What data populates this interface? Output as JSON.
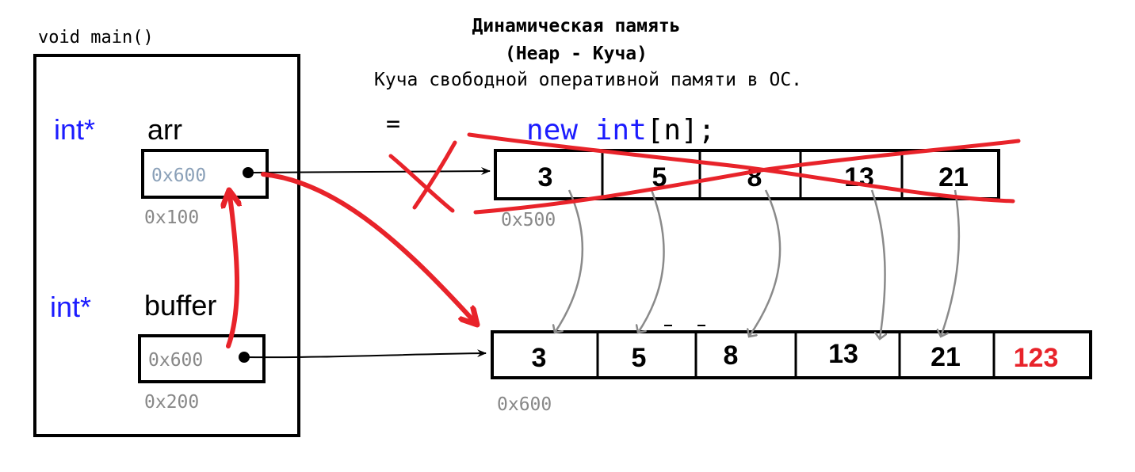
{
  "heading": {
    "title": "Динамическая память",
    "subtitle": "(Heap - Куча)",
    "description": "Куча свободной оперативной памяти в ОС."
  },
  "frame": {
    "label": "void main()"
  },
  "vars": {
    "arr": {
      "type": "int*",
      "name": "arr",
      "value": "0x600",
      "address": "0x100"
    },
    "buffer": {
      "type": "int*",
      "name": "buffer",
      "value": "0x600",
      "address": "0x200"
    }
  },
  "expression": {
    "equals": "=",
    "keyword_new": "new",
    "keyword_int": "int",
    "rest": "[n];"
  },
  "old_array": {
    "address": "0x500",
    "values": [
      "3",
      "5",
      "8",
      "13",
      "21"
    ]
  },
  "new_array": {
    "address": "0x600",
    "values": [
      "3",
      "5",
      "8",
      "13",
      "21",
      "123"
    ]
  },
  "colors": {
    "keyword": "#1c1cff",
    "text": "#000000",
    "address": "#888888",
    "annotation_red": "#e8232a",
    "copy_arrow": "#8a8a8a"
  }
}
